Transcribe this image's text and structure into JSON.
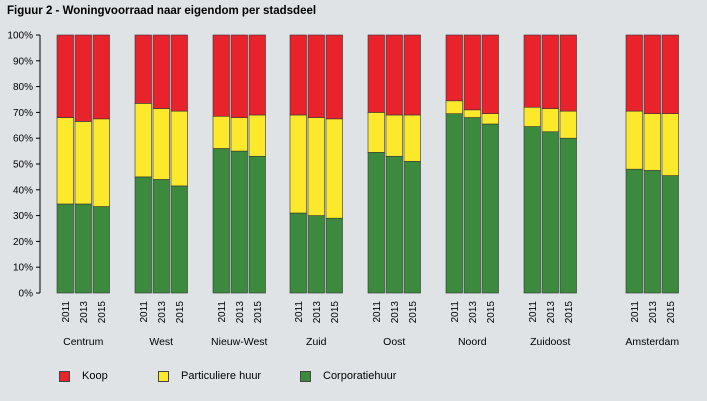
{
  "title": "Figuur 2 - Woningvoorraad naar eigendom per stadsdeel",
  "chart_data": {
    "type": "bar",
    "stacked": true,
    "percent": true,
    "title": "Figuur 2 - Woningvoorraad naar eigendom per stadsdeel",
    "ylim": [
      0,
      100
    ],
    "y_ticks": [
      "0%",
      "10%",
      "20%",
      "30%",
      "40%",
      "50%",
      "60%",
      "70%",
      "80%",
      "90%",
      "100%"
    ],
    "years": [
      "2011",
      "2013",
      "2015"
    ],
    "groups": [
      {
        "name": "Centrum",
        "corporatiehuur": [
          34.5,
          34.5,
          33.5
        ],
        "particuliere_huur": [
          33.5,
          32.0,
          34.0
        ],
        "koop": [
          32.0,
          33.5,
          32.5
        ]
      },
      {
        "name": "West",
        "corporatiehuur": [
          45.0,
          44.0,
          41.5
        ],
        "particuliere_huur": [
          28.5,
          27.5,
          29.0
        ],
        "koop": [
          26.5,
          28.5,
          29.5
        ]
      },
      {
        "name": "Nieuw-West",
        "corporatiehuur": [
          56.0,
          55.0,
          53.0
        ],
        "particuliere_huur": [
          12.5,
          13.0,
          16.0
        ],
        "koop": [
          31.5,
          32.0,
          31.0
        ]
      },
      {
        "name": "Zuid",
        "corporatiehuur": [
          31.0,
          30.0,
          29.0
        ],
        "particuliere_huur": [
          38.0,
          38.0,
          38.5
        ],
        "koop": [
          31.0,
          32.0,
          32.5
        ]
      },
      {
        "name": "Oost",
        "corporatiehuur": [
          54.5,
          53.0,
          51.0
        ],
        "particuliere_huur": [
          15.5,
          16.0,
          18.0
        ],
        "koop": [
          30.0,
          31.0,
          31.0
        ]
      },
      {
        "name": "Noord",
        "corporatiehuur": [
          69.5,
          68.0,
          65.5
        ],
        "particuliere_huur": [
          5.0,
          3.0,
          4.0
        ],
        "koop": [
          25.5,
          29.0,
          30.5
        ]
      },
      {
        "name": "Zuidoost",
        "corporatiehuur": [
          64.5,
          62.5,
          60.0
        ],
        "particuliere_huur": [
          7.5,
          9.0,
          10.5
        ],
        "koop": [
          28.0,
          28.5,
          29.5
        ]
      },
      {
        "name": "Amsterdam",
        "corporatiehuur": [
          48.0,
          47.5,
          45.5
        ],
        "particuliere_huur": [
          22.5,
          22.0,
          24.0
        ],
        "koop": [
          29.5,
          30.5,
          30.5
        ]
      }
    ],
    "series": [
      {
        "key": "koop",
        "name": "Koop",
        "color": "#e8232c"
      },
      {
        "key": "particuliere_huur",
        "name": "Particuliere huur",
        "color": "#fde92b"
      },
      {
        "key": "corporatiehuur",
        "name": "Corporatiehuur",
        "color": "#3b8a3e"
      }
    ],
    "grid": false,
    "legend": "bottom"
  }
}
